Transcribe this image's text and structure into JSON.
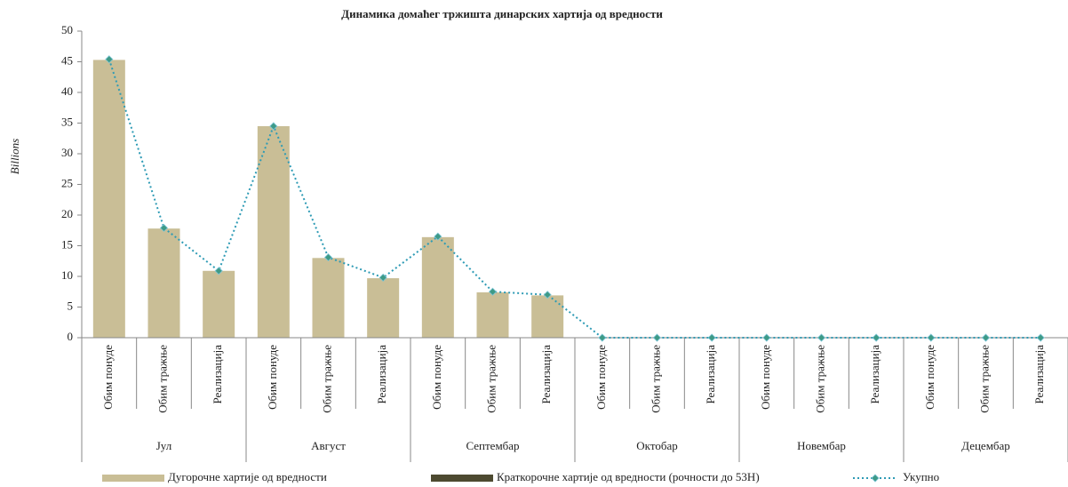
{
  "chart_data": {
    "type": "bar",
    "title": "Динамика домаћег тржишта динарских хартија од вредности",
    "ylabel": "Billions",
    "categories": [
      "Обим понуде",
      "Обим тражње",
      "Реализација",
      "Обим понуде",
      "Обим тражње",
      "Реализација",
      "Обим понуде",
      "Обим тражње",
      "Реализација",
      "Обим понуде",
      "Обим тражње",
      "Реализација",
      "Обим понуде",
      "Обим тражње",
      "Реализација",
      "Обим понуде",
      "Обим тражње",
      "Реализација"
    ],
    "groups": [
      "Јул",
      "Август",
      "Септембар",
      "Октобар",
      "Новембар",
      "Децембар"
    ],
    "series": [
      {
        "name": "Дугорочне хартије од вредности",
        "type": "bar",
        "color": "#c9be96",
        "values": [
          45.3,
          17.8,
          10.9,
          34.5,
          13.0,
          9.7,
          16.4,
          7.4,
          6.9,
          0,
          0,
          0,
          0,
          0,
          0,
          0,
          0,
          0
        ]
      },
      {
        "name": "Краткорочне хартије од вредности (рочности до 53Н)",
        "type": "bar",
        "color": "#4d4a30",
        "values": [
          0,
          0,
          0,
          0,
          0,
          0,
          0,
          0,
          0,
          0,
          0,
          0,
          0,
          0,
          0,
          0,
          0,
          0
        ]
      },
      {
        "name": "Укупно",
        "type": "line",
        "color": "#2e9bb5",
        "marker_color": "#3e9a86",
        "values": [
          45.4,
          17.9,
          10.9,
          34.5,
          13.1,
          9.8,
          16.5,
          7.5,
          7.0,
          0,
          0,
          0,
          0,
          0,
          0,
          0,
          0,
          0
        ]
      }
    ],
    "stacked": true,
    "ylim": [
      0,
      50
    ],
    "yticks": [
      0,
      5,
      10,
      15,
      20,
      25,
      30,
      35,
      40,
      45,
      50
    ],
    "grid": false,
    "legend": "bottom"
  }
}
